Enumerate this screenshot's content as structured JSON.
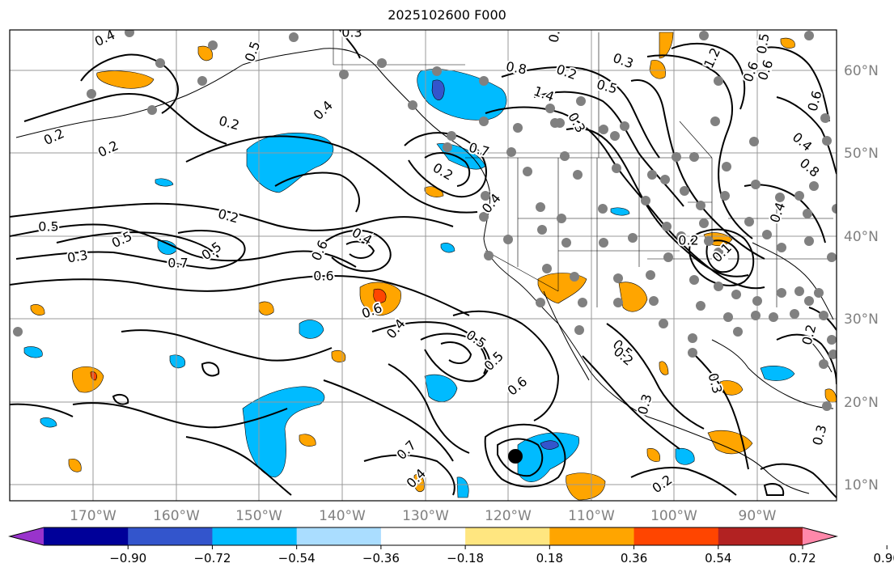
{
  "title": "2025102600 F000",
  "map": {
    "longitude_labels": [
      "170°W",
      "160°W",
      "150°W",
      "140°W",
      "130°W",
      "120°W",
      "110°W",
      "100°W",
      "90°W"
    ],
    "latitude_labels": [
      "60°N",
      "50°N",
      "40°N",
      "30°N",
      "20°N",
      "10°N"
    ],
    "contour_labels": [
      "0.4",
      "0.5",
      "0.3",
      "0.2",
      "0.2",
      "0.4",
      "0.2",
      "0.5",
      "0.5",
      "0.3",
      "0.5",
      "0.7",
      "0.6",
      "0.6",
      "0.4",
      "0.6",
      "0.4",
      "0.5",
      "0.5",
      "0.6",
      "0.7",
      "0.4",
      "0.2",
      "0.2",
      "0.3",
      "0.8",
      "1.4",
      "0.5",
      "0.3",
      "0.7",
      "0.2",
      "0.4",
      "0.5",
      "0.2",
      "0.1",
      "0.6",
      "0.8",
      "0.4",
      "0.6",
      "0.4",
      "0.2",
      "0.3",
      "0.2",
      "0.3",
      "0.2",
      "0.3",
      "1.2",
      "0.5",
      "0.6",
      "0.3"
    ],
    "storm_marker": "black-dot",
    "station_marker": "gray-dot"
  },
  "colorbar": {
    "colors": [
      "#9933cc",
      "#000099",
      "#3355cc",
      "#00bbff",
      "#aaddff",
      "#ffffff",
      "#ffe680",
      "#ffa500",
      "#ff4500",
      "#b22222",
      "#ff88aa"
    ],
    "tick_labels": [
      "−0.90",
      "−0.72",
      "−0.54",
      "−0.36",
      "−0.18",
      "0.18",
      "0.36",
      "0.54",
      "0.72",
      "0.90"
    ]
  }
}
